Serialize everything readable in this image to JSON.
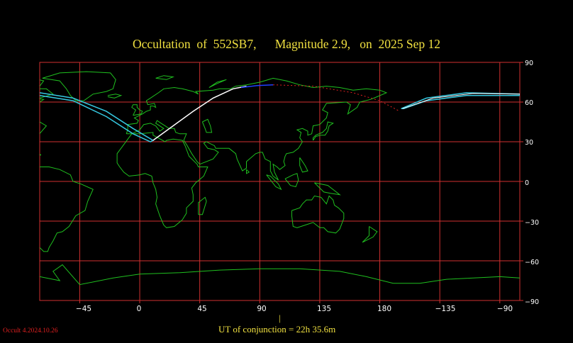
{
  "title": "Occultation  of  552SB7,      Magnitude 2.9,   on  2025 Sep 12",
  "y_axis_labels": [
    "90",
    "60",
    "30",
    "0",
    "−30",
    "−60",
    "−90"
  ],
  "x_axis_labels": [
    "−45",
    "0",
    "45",
    "90",
    "135",
    "180",
    "−135",
    "−90"
  ],
  "ut_marker": "|",
  "ut_conjunction": "UT of conjunction = 22h 35.6m",
  "version": "Occult 4.2024.10.26",
  "colors": {
    "grid": "#d03030",
    "coast": "#1fbf1f",
    "title": "#f0e040",
    "path_limits": "#35c8e0",
    "path_center": "#ffffff",
    "path_day": "#2040ff",
    "path_predicted": "#e02020"
  }
}
